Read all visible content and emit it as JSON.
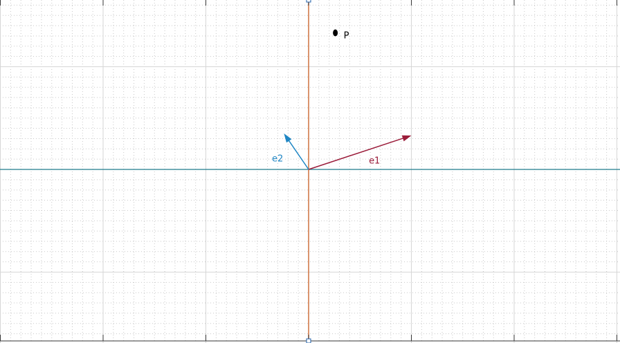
{
  "colors": {
    "background": "#ffffff",
    "minor_grid": "#c8c8c8",
    "major_grid": "#d6d6d6",
    "x_axis": "#1f7a8c",
    "y_axis": "#d0794a",
    "e1": "#9b1c3a",
    "e2": "#1f86c4",
    "point": "#000000",
    "frame": "#333333"
  },
  "vectors": {
    "e1": {
      "label": "e1",
      "dx": 1.0,
      "dy": 0.33
    },
    "e2": {
      "label": "e2",
      "dx": -0.24,
      "dy": 0.35
    }
  },
  "point_p": {
    "label": "P",
    "x": 0.26,
    "y": 1.33
  }
}
